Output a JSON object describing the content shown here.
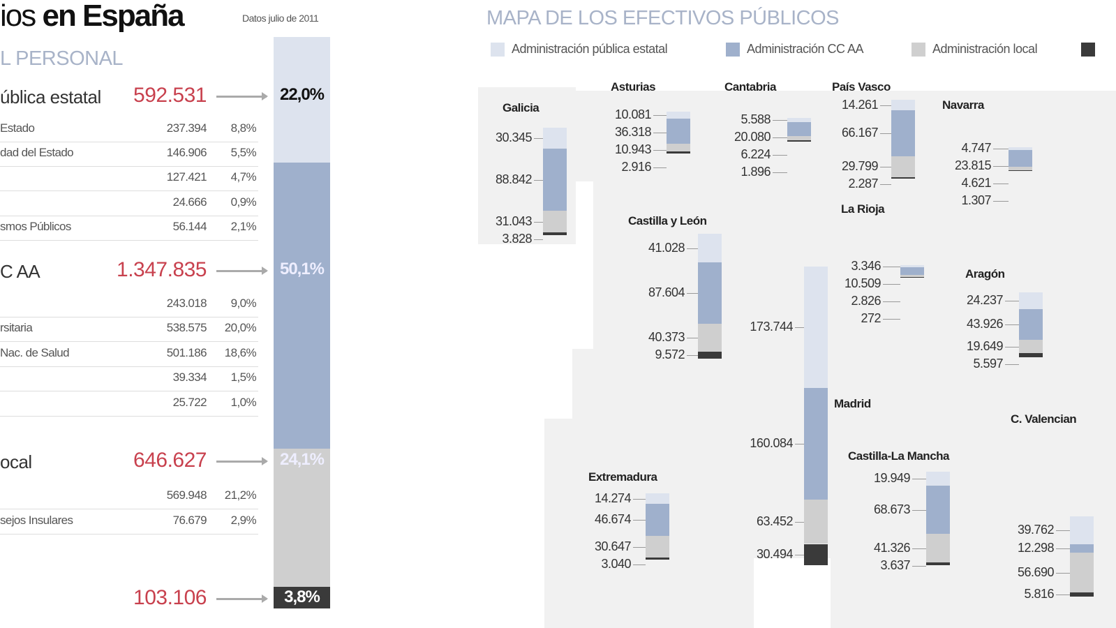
{
  "header": {
    "title_light": "ios",
    "title_bold": "en España",
    "date_note": "Datos julio de 2011",
    "subtitle": "L PERSONAL"
  },
  "colors": {
    "estatal": "#dde3ee",
    "ccaa": "#9fb0cc",
    "local": "#cfcfcf",
    "dark": "#3a3a3a",
    "value_red": "#c8414e"
  },
  "table": {
    "sections": [
      {
        "label": "ública estatal",
        "value": "592.531",
        "pct": "22,0%",
        "rows": [
          {
            "label": "Estado",
            "value": "237.394",
            "pct": "8,8%"
          },
          {
            "label": "dad del Estado",
            "value": "146.906",
            "pct": "5,5%"
          },
          {
            "label": "",
            "value": "127.421",
            "pct": "4,7%"
          },
          {
            "label": "",
            "value": "24.666",
            "pct": "0,9%"
          },
          {
            "label": "smos Públicos",
            "value": "56.144",
            "pct": "2,1%"
          }
        ]
      },
      {
        "label": "C AA",
        "value": "1.347.835",
        "pct": "50,1%",
        "rows": [
          {
            "label": "",
            "value": "243.018",
            "pct": "9,0%"
          },
          {
            "label": "rsitaria",
            "value": "538.575",
            "pct": "20,0%"
          },
          {
            "label": " Nac. de Salud",
            "value": "501.186",
            "pct": "18,6%"
          },
          {
            "label": "",
            "value": "39.334",
            "pct": "1,5%"
          },
          {
            "label": "",
            "value": "25.722",
            "pct": "1,0%"
          }
        ]
      },
      {
        "label": "ocal",
        "value": "646.627",
        "pct": "24,1%",
        "rows": [
          {
            "label": "",
            "value": "569.948",
            "pct": "21,2%"
          },
          {
            "label": "sejos Insulares",
            "value": "76.679",
            "pct": "2,9%"
          }
        ]
      },
      {
        "label": "",
        "value": "103.106",
        "pct": "3,8%",
        "rows": []
      }
    ]
  },
  "chart_data": [
    {
      "type": "bar",
      "stacked": true,
      "categories": [
        ""
      ],
      "series": [
        {
          "values": [
            22.0
          ]
        },
        {
          "values": [
            50.1
          ]
        },
        {
          "values": [
            24.1
          ]
        },
        {
          "values": [
            3.8
          ]
        }
      ]
    },
    {
      "type": "bar",
      "stacked": true,
      "title": "MAPA DE LOS EFECTIVOS PÚBLICOS",
      "legend": [
        "Administración pública estatal",
        "Administración CC AA",
        "Administración local",
        ""
      ],
      "legend_position": "top",
      "regions": [
        {
          "name": "Galicia",
          "labels": [
            "30.345",
            "88.842",
            "31.043",
            "3.828"
          ],
          "values": [
            30345,
            88842,
            31043,
            3828
          ]
        },
        {
          "name": "Asturias",
          "labels": [
            "10.081",
            "36.318",
            "10.943",
            "2.916"
          ],
          "values": [
            10081,
            36318,
            10943,
            2916
          ]
        },
        {
          "name": "Cantabria",
          "labels": [
            "5.588",
            "20.080",
            "6.224",
            "1.896"
          ],
          "values": [
            5588,
            20080,
            6224,
            1896
          ]
        },
        {
          "name": "País Vasco",
          "labels": [
            "14.261",
            "66.167",
            "29.799",
            "2.287"
          ],
          "values": [
            14261,
            66167,
            29799,
            2287
          ]
        },
        {
          "name": "Navarra",
          "labels": [
            "4.747",
            "23.815",
            "4.621",
            "1.307"
          ],
          "values": [
            4747,
            23815,
            4621,
            1307
          ]
        },
        {
          "name": "Castilla y León",
          "labels": [
            "41.028",
            "87.604",
            "40.373",
            "9.572"
          ],
          "values": [
            41028,
            87604,
            40373,
            9572
          ]
        },
        {
          "name": "La Rioja",
          "labels": [
            "3.346",
            "10.509",
            "2.826",
            "272"
          ],
          "values": [
            3346,
            10509,
            2826,
            272
          ]
        },
        {
          "name": "Aragón",
          "labels": [
            "24.237",
            "43.926",
            "19.649",
            "5.597"
          ],
          "values": [
            24237,
            43926,
            19649,
            5597
          ]
        },
        {
          "name": "Madrid",
          "labels": [
            "173.744",
            "160.084",
            "63.452",
            "30.494"
          ],
          "values": [
            173744,
            160084,
            63452,
            30494
          ]
        },
        {
          "name": "Extremadura",
          "labels": [
            "14.274",
            "46.674",
            "30.647",
            "3.040"
          ],
          "values": [
            14274,
            46674,
            30647,
            3040
          ]
        },
        {
          "name": "Castilla-La Mancha",
          "labels": [
            "19.949",
            "68.673",
            "41.326",
            "3.637"
          ],
          "values": [
            19949,
            68673,
            41326,
            3637
          ]
        },
        {
          "name": "C. Valencian",
          "labels": [
            "39.762",
            "12.298",
            "56.690",
            "5.816"
          ],
          "values": [
            39762,
            12298,
            56690,
            5816
          ]
        }
      ]
    }
  ]
}
